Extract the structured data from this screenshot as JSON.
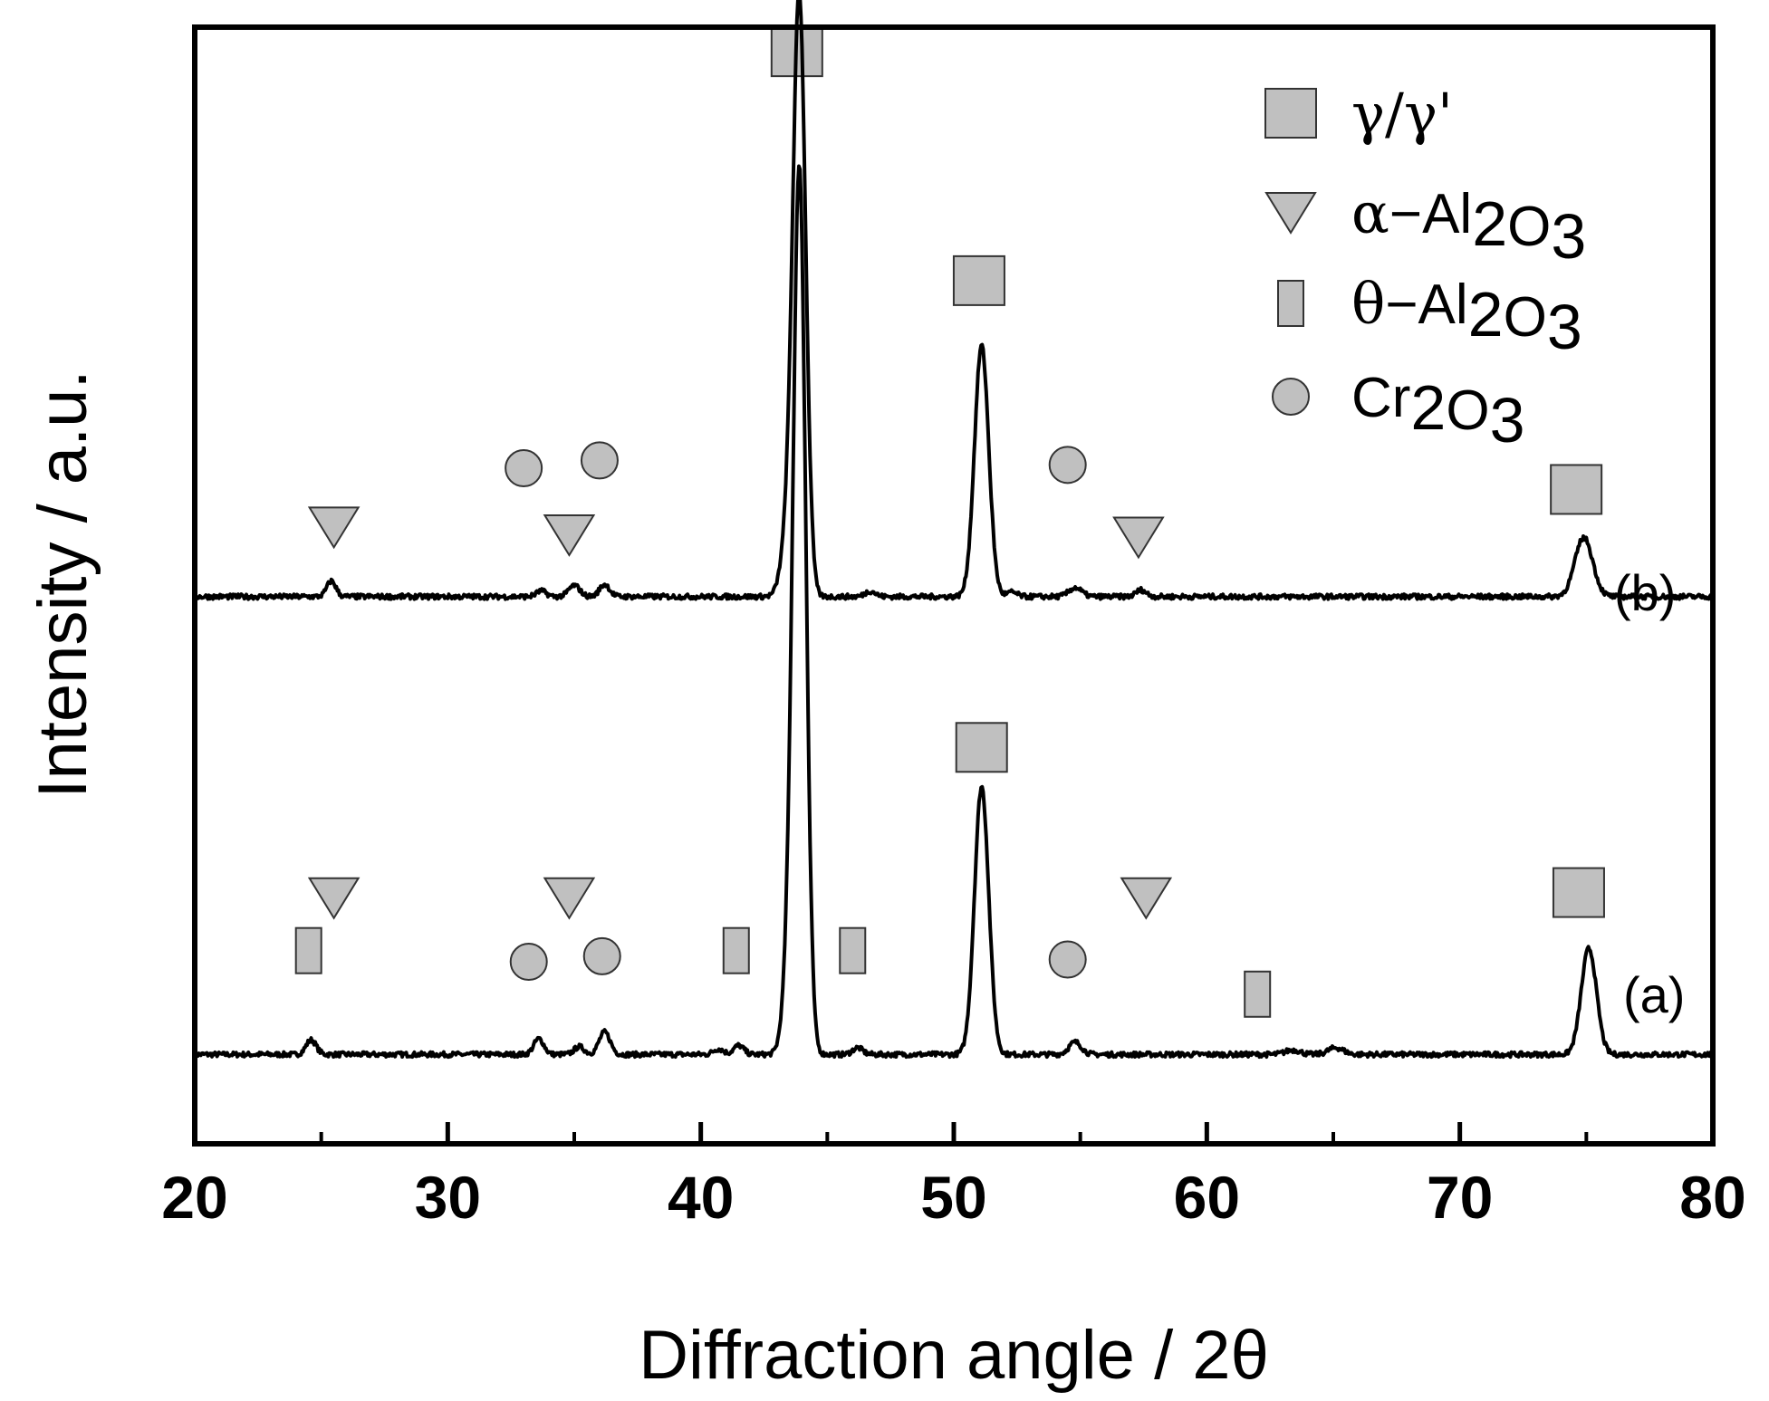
{
  "chart_data": {
    "type": "line",
    "title": "",
    "xlabel": "Diffraction angle / 2θ",
    "ylabel": "Intensity / a.u.",
    "xlim": [
      20,
      80
    ],
    "xticks": [
      "20",
      "30",
      "40",
      "50",
      "60",
      "70",
      "80"
    ],
    "minor_xticks": [
      25,
      35,
      45,
      55,
      65,
      75
    ],
    "ylim": [
      0,
      100
    ],
    "colors": {
      "line": "#000000",
      "marker_fill": "#c0c0c0",
      "marker_stroke": "#333333"
    },
    "legend": [
      {
        "symbol": "square",
        "parts": [
          {
            "t": "γ/γ'",
            "greek": true
          }
        ]
      },
      {
        "symbol": "triangle",
        "parts": [
          {
            "t": "α",
            "greek": true
          },
          {
            "t": "−Al"
          },
          {
            "t": "2",
            "sub": true
          },
          {
            "t": "O"
          },
          {
            "t": "3",
            "sub": true
          }
        ]
      },
      {
        "symbol": "rect",
        "parts": [
          {
            "t": "θ",
            "greek": true
          },
          {
            "t": "−Al"
          },
          {
            "t": "2",
            "sub": true
          },
          {
            "t": "O"
          },
          {
            "t": "3",
            "sub": true
          }
        ]
      },
      {
        "symbol": "circle",
        "parts": [
          {
            "t": "Cr"
          },
          {
            "t": "2",
            "sub": true
          },
          {
            "t": "O"
          },
          {
            "t": "3",
            "sub": true
          }
        ]
      }
    ],
    "series": [
      {
        "name": "(a)",
        "baseline": 8,
        "peaks": [
          {
            "x": 24.6,
            "h": 1.3,
            "w": 0.2
          },
          {
            "x": 33.6,
            "h": 1.4,
            "w": 0.2
          },
          {
            "x": 35.2,
            "h": 0.7,
            "w": 0.2
          },
          {
            "x": 36.2,
            "h": 2.0,
            "w": 0.22
          },
          {
            "x": 40.7,
            "h": 0.5,
            "w": 0.2
          },
          {
            "x": 41.5,
            "h": 0.8,
            "w": 0.2
          },
          {
            "x": 43.9,
            "h": 78.0,
            "w": 0.25
          },
          {
            "x": 43.5,
            "h": 6.0,
            "w": 0.25
          },
          {
            "x": 46.2,
            "h": 0.6,
            "w": 0.2
          },
          {
            "x": 51.1,
            "h": 24.0,
            "w": 0.28
          },
          {
            "x": 54.8,
            "h": 1.1,
            "w": 0.25
          },
          {
            "x": 63.4,
            "h": 0.4,
            "w": 0.3
          },
          {
            "x": 65.1,
            "h": 0.6,
            "w": 0.3
          },
          {
            "x": 75.1,
            "h": 9.5,
            "w": 0.3
          }
        ],
        "markers": [
          {
            "sym": "rect",
            "x": 24.5,
            "y": 17.3
          },
          {
            "sym": "triangle",
            "x": 25.5,
            "y": 22.0
          },
          {
            "sym": "circle",
            "x": 33.2,
            "y": 16.3
          },
          {
            "sym": "triangle",
            "x": 34.8,
            "y": 22.0
          },
          {
            "sym": "circle",
            "x": 36.1,
            "y": 16.8
          },
          {
            "sym": "rect",
            "x": 41.4,
            "y": 17.3
          },
          {
            "sym": "rect",
            "x": 46.0,
            "y": 17.3
          },
          {
            "sym": "square",
            "x": 51.1,
            "y": 35.5
          },
          {
            "sym": "circle",
            "x": 54.5,
            "y": 16.5
          },
          {
            "sym": "triangle",
            "x": 57.6,
            "y": 22.0
          },
          {
            "sym": "rect",
            "x": 62.0,
            "y": 13.4
          },
          {
            "sym": "square",
            "x": 74.7,
            "y": 22.5
          }
        ]
      },
      {
        "name": "(b)",
        "baseline": 49,
        "peaks": [
          {
            "x": 25.4,
            "h": 1.4,
            "w": 0.18
          },
          {
            "x": 33.7,
            "h": 0.5,
            "w": 0.2
          },
          {
            "x": 35.0,
            "h": 1.0,
            "w": 0.22
          },
          {
            "x": 36.2,
            "h": 1.1,
            "w": 0.2
          },
          {
            "x": 43.9,
            "h": 52.0,
            "w": 0.25
          },
          {
            "x": 43.5,
            "h": 6.0,
            "w": 0.28
          },
          {
            "x": 46.7,
            "h": 0.5,
            "w": 0.2
          },
          {
            "x": 51.1,
            "h": 22.5,
            "w": 0.28
          },
          {
            "x": 52.3,
            "h": 0.4,
            "w": 0.2
          },
          {
            "x": 54.8,
            "h": 0.8,
            "w": 0.25
          },
          {
            "x": 57.4,
            "h": 0.6,
            "w": 0.2
          },
          {
            "x": 74.9,
            "h": 5.3,
            "w": 0.35
          }
        ],
        "markers": [
          {
            "sym": "triangle",
            "x": 25.5,
            "y": 55.2
          },
          {
            "sym": "circle",
            "x": 33.0,
            "y": 60.5
          },
          {
            "sym": "triangle",
            "x": 34.8,
            "y": 54.5
          },
          {
            "sym": "circle",
            "x": 36.0,
            "y": 61.2
          },
          {
            "sym": "square",
            "x": 43.8,
            "y": 97.8
          },
          {
            "sym": "square",
            "x": 51.0,
            "y": 77.3
          },
          {
            "sym": "circle",
            "x": 54.5,
            "y": 60.8
          },
          {
            "sym": "triangle",
            "x": 57.3,
            "y": 54.3
          },
          {
            "sym": "square",
            "x": 74.6,
            "y": 58.6
          }
        ]
      }
    ]
  }
}
